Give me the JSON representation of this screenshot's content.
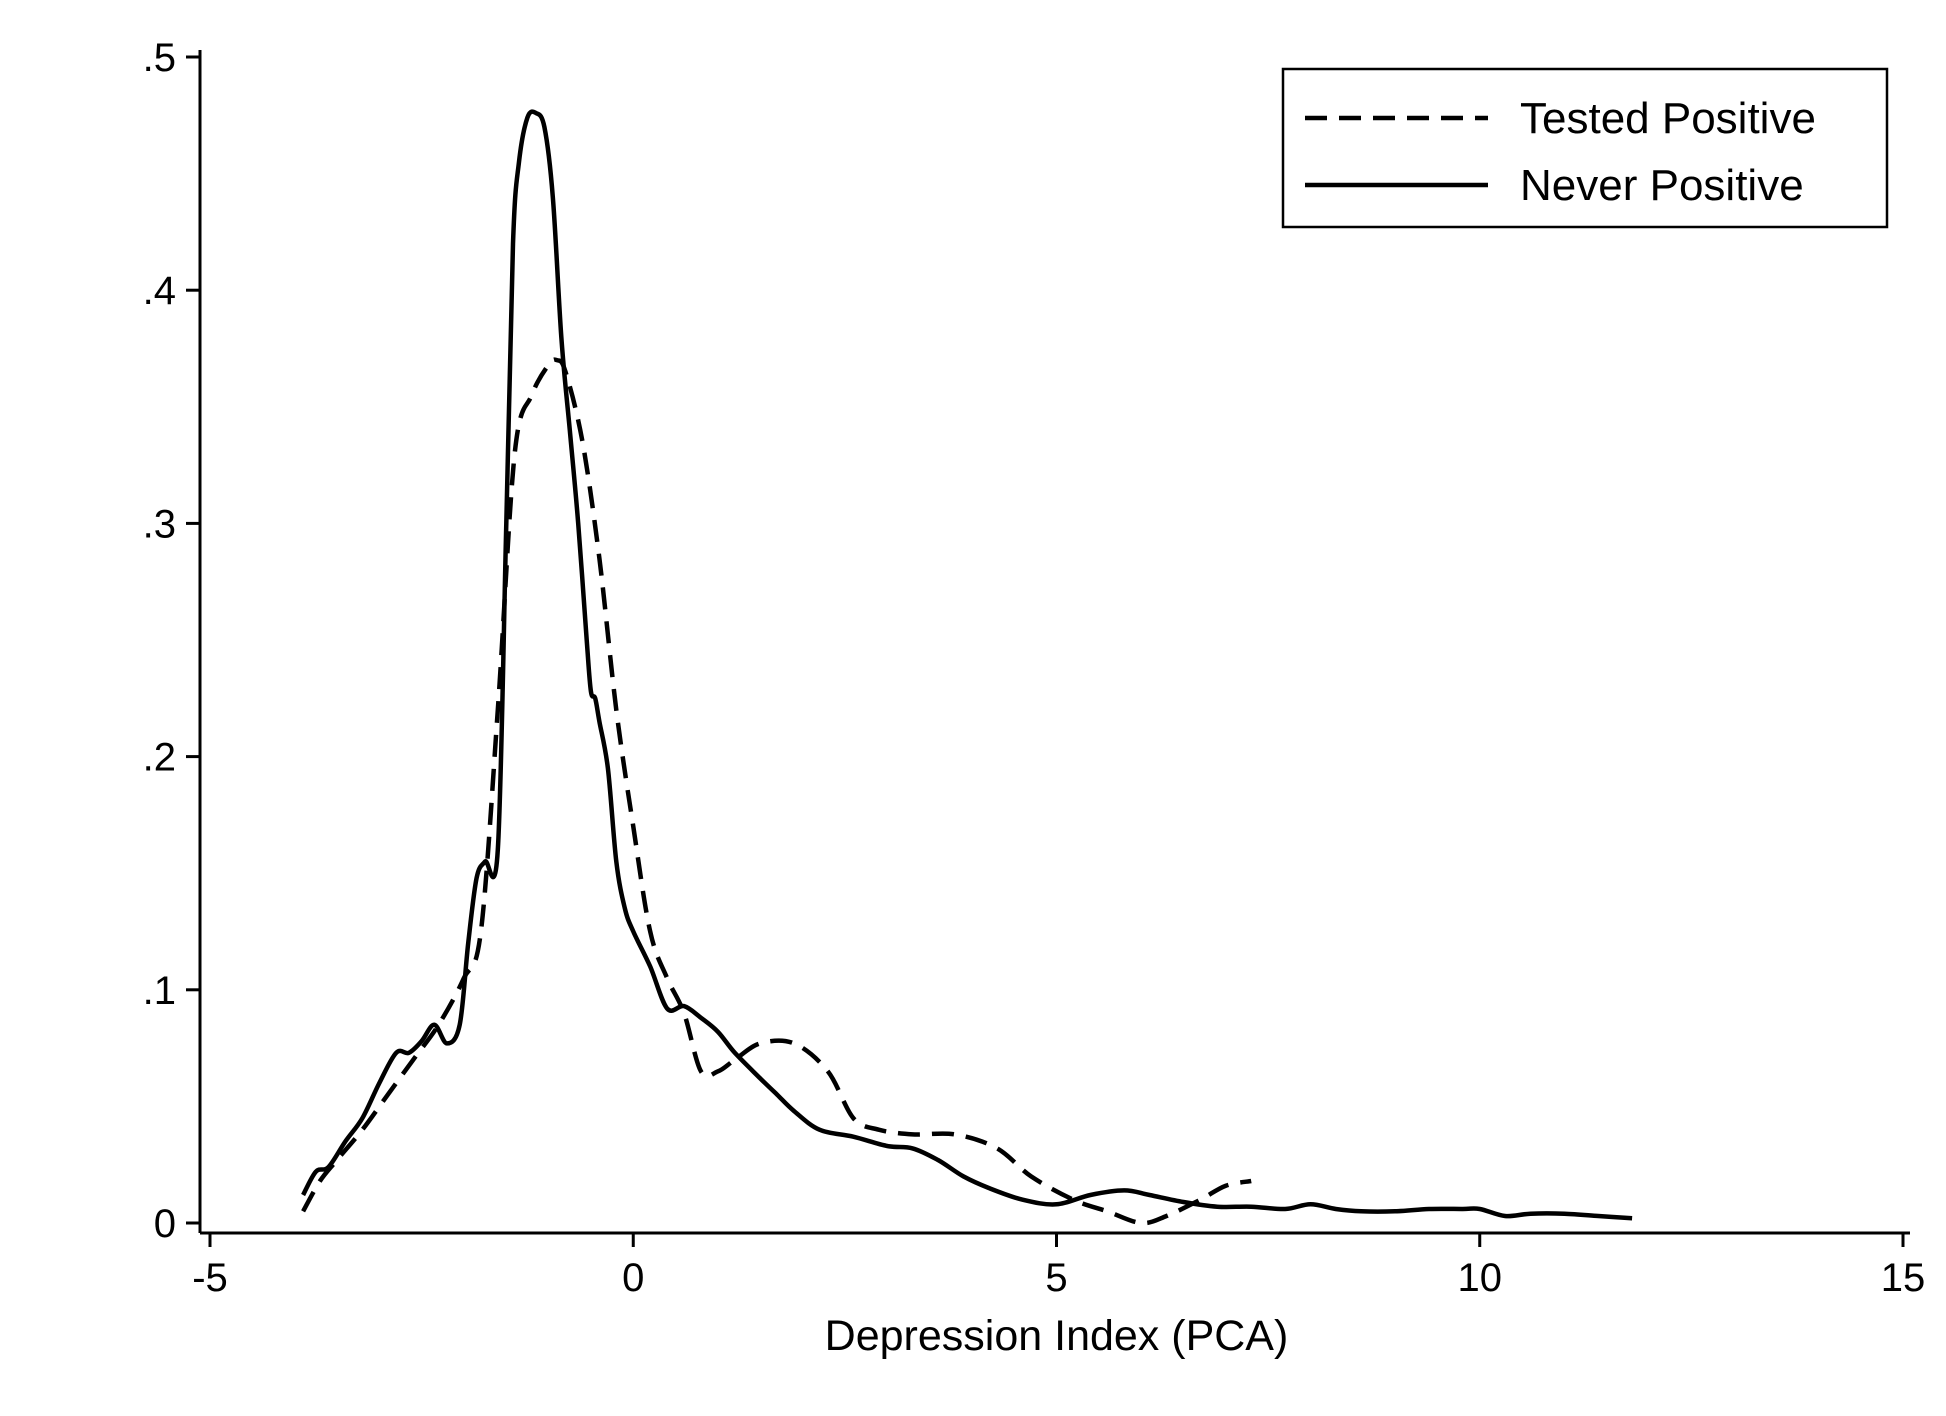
{
  "chart_data": {
    "type": "line",
    "title": "",
    "xlabel": "Depression Index (PCA)",
    "ylabel": "",
    "xlim": [
      -5,
      15
    ],
    "ylim": [
      0,
      0.5
    ],
    "x_ticks": [
      -5,
      0,
      5,
      10,
      15
    ],
    "x_tick_labels": [
      "-5",
      "0",
      "5",
      "10",
      "15"
    ],
    "y_ticks": [
      0,
      0.1,
      0.2,
      0.3,
      0.4,
      0.5
    ],
    "y_tick_labels": [
      "0",
      ".1",
      ".2",
      ".3",
      ".4",
      ".5"
    ],
    "grid": false,
    "legend": "top-right",
    "colors": {
      "line": "#000000",
      "background": "#ffffff"
    },
    "series": [
      {
        "name": "Tested Positive",
        "style": "dashed",
        "x": [
          -3.9,
          -3.7,
          -3.5,
          -3.2,
          -2.9,
          -2.6,
          -2.3,
          -2.0,
          -1.8,
          -1.6,
          -1.4,
          -1.2,
          -1.0,
          -0.9,
          -0.8,
          -0.6,
          -0.4,
          -0.2,
          0.0,
          0.2,
          0.4,
          0.6,
          0.8,
          1.0,
          1.2,
          1.5,
          1.9,
          2.3,
          2.6,
          2.9,
          3.3,
          3.8,
          4.3,
          4.7,
          5.2,
          5.6,
          6.0,
          6.3,
          6.7,
          7.0,
          7.3
        ],
        "y": [
          0.005,
          0.018,
          0.027,
          0.04,
          0.055,
          0.07,
          0.085,
          0.105,
          0.125,
          0.22,
          0.33,
          0.355,
          0.368,
          0.37,
          0.365,
          0.335,
          0.285,
          0.22,
          0.17,
          0.125,
          0.105,
          0.09,
          0.065,
          0.065,
          0.07,
          0.077,
          0.077,
          0.065,
          0.045,
          0.04,
          0.038,
          0.038,
          0.032,
          0.02,
          0.01,
          0.005,
          0.0,
          0.003,
          0.01,
          0.016,
          0.018
        ]
      },
      {
        "name": "Never Positive",
        "style": "solid",
        "x": [
          -3.9,
          -3.75,
          -3.6,
          -3.4,
          -3.2,
          -3.0,
          -2.8,
          -2.65,
          -2.5,
          -2.35,
          -2.2,
          -2.05,
          -1.95,
          -1.85,
          -1.75,
          -1.6,
          -1.5,
          -1.42,
          -1.35,
          -1.25,
          -1.15,
          -1.05,
          -0.95,
          -0.85,
          -0.75,
          -0.65,
          -0.55,
          -0.5,
          -0.45,
          -0.4,
          -0.3,
          -0.2,
          -0.1,
          0.0,
          0.2,
          0.4,
          0.6,
          0.8,
          1.0,
          1.2,
          1.5,
          1.7,
          1.9,
          2.2,
          2.6,
          3.0,
          3.3,
          3.6,
          3.9,
          4.2,
          4.6,
          5.0,
          5.4,
          5.8,
          6.1,
          6.5,
          6.9,
          7.3,
          7.7,
          8.0,
          8.3,
          8.6,
          9.0,
          9.4,
          9.8,
          10.0,
          10.3,
          10.6,
          11.0,
          11.4,
          11.8
        ],
        "y": [
          0.012,
          0.022,
          0.024,
          0.035,
          0.045,
          0.06,
          0.073,
          0.073,
          0.078,
          0.085,
          0.077,
          0.085,
          0.12,
          0.148,
          0.155,
          0.16,
          0.3,
          0.42,
          0.455,
          0.474,
          0.476,
          0.47,
          0.44,
          0.38,
          0.34,
          0.3,
          0.25,
          0.228,
          0.225,
          0.215,
          0.195,
          0.155,
          0.135,
          0.125,
          0.11,
          0.092,
          0.093,
          0.088,
          0.082,
          0.073,
          0.062,
          0.055,
          0.048,
          0.04,
          0.037,
          0.033,
          0.032,
          0.027,
          0.02,
          0.015,
          0.01,
          0.008,
          0.012,
          0.014,
          0.012,
          0.009,
          0.007,
          0.007,
          0.006,
          0.008,
          0.006,
          0.005,
          0.005,
          0.006,
          0.006,
          0.006,
          0.003,
          0.004,
          0.004,
          0.003,
          0.002
        ]
      }
    ]
  }
}
